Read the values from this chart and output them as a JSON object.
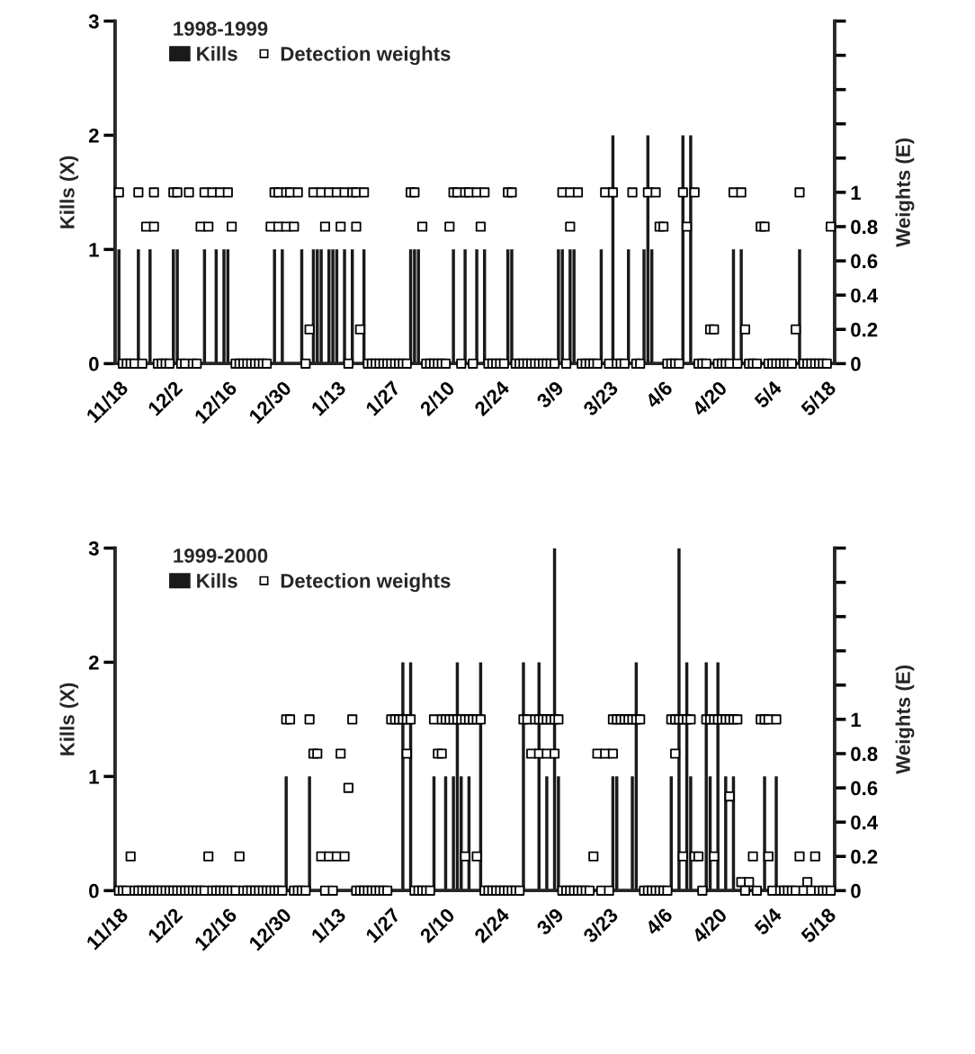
{
  "chart_data": [
    {
      "type": "bar",
      "title": "1998-1999",
      "ylabel": "Kills (X)",
      "y2label": "Weights (E)",
      "legend": "top left",
      "grid": false,
      "xlim": [
        "1999-11-17",
        "2000-05-20"
      ],
      "xticks": [
        {
          "value": "1999-11-18",
          "label": "11/18"
        },
        {
          "value": "1999-12-02",
          "label": "12/2"
        },
        {
          "value": "1999-12-16",
          "label": "12/16"
        },
        {
          "value": "1999-12-30",
          "label": "12/30"
        },
        {
          "value": "2000-01-13",
          "label": "1/13"
        },
        {
          "value": "2000-01-27",
          "label": "1/27"
        },
        {
          "value": "2000-02-10",
          "label": "2/10"
        },
        {
          "value": "2000-02-24",
          "label": "2/24"
        },
        {
          "value": "2000-03-09",
          "label": "3/9"
        },
        {
          "value": "2000-03-23",
          "label": "3/23"
        },
        {
          "value": "2000-04-06",
          "label": "4/6"
        },
        {
          "value": "2000-04-20",
          "label": "4/20"
        },
        {
          "value": "2000-05-04",
          "label": "5/4"
        },
        {
          "value": "2000-05-18",
          "label": "5/18"
        }
      ],
      "ylim": [
        0,
        3
      ],
      "yticks": [
        0,
        1,
        2,
        3
      ],
      "y2lim": [
        0,
        2
      ],
      "y2ticks": [
        0,
        0.2,
        0.4,
        0.6,
        0.8,
        1,
        {
          "value": 1.2,
          "label": null
        },
        {
          "value": 1.4,
          "label": null
        },
        {
          "value": 1.6,
          "label": null
        },
        {
          "value": 1.8,
          "label": null
        },
        {
          "value": 2,
          "label": null
        }
      ],
      "series": [
        {
          "name": "Kills",
          "color": "#1a1a1a",
          "x": [
            "1999-11-18",
            "1999-11-23",
            "1999-11-26",
            "1999-12-02",
            "1999-12-03",
            "1999-12-10",
            "1999-12-13",
            "1999-12-15",
            "1999-12-16",
            "1999-12-28",
            "1999-12-30",
            "2000-01-04",
            "2000-01-07",
            "2000-01-08",
            "2000-01-09",
            "2000-01-11",
            "2000-01-12",
            "2000-01-13",
            "2000-01-15",
            "2000-01-17",
            "2000-01-20",
            "2000-02-01",
            "2000-02-02",
            "2000-02-03",
            "2000-02-12",
            "2000-02-15",
            "2000-02-18",
            "2000-02-20",
            "2000-02-26",
            "2000-02-27",
            "2000-03-10",
            "2000-03-11",
            "2000-03-13",
            "2000-03-14",
            "2000-03-21",
            "2000-03-24",
            "2000-03-28",
            "2000-04-01",
            "2000-04-02",
            "2000-04-03",
            "2000-04-11",
            "2000-04-13",
            "2000-04-24",
            "2000-04-26",
            "2000-05-11"
          ],
          "values": [
            1,
            1,
            1,
            1,
            1,
            1,
            1,
            1,
            1,
            1,
            1,
            1,
            1,
            1,
            1,
            1,
            1,
            1,
            1,
            1,
            1,
            1,
            1,
            1,
            1,
            1,
            1,
            1,
            1,
            1,
            1,
            1,
            1,
            1,
            1,
            2,
            1,
            1,
            2,
            1,
            2,
            2,
            1,
            1,
            1
          ]
        },
        {
          "name": "Detection weights",
          "type": "scatter",
          "axis": "y2",
          "marker": "square",
          "color": "#ffffff",
          "x": [
            "1999-11-18",
            "1999-11-23",
            "1999-11-27",
            "1999-12-02",
            "1999-12-03",
            "1999-12-06",
            "1999-12-10",
            "1999-12-12",
            "1999-12-14",
            "1999-12-16",
            "1999-12-28",
            "1999-12-29",
            "1999-12-31",
            "2000-01-01",
            "2000-01-03",
            "2000-01-07",
            "2000-01-09",
            "2000-01-11",
            "2000-01-13",
            "2000-01-15",
            "2000-01-17",
            "2000-01-18",
            "2000-01-20",
            "2000-02-01",
            "2000-02-02",
            "2000-02-12",
            "2000-02-13",
            "2000-02-15",
            "2000-02-16",
            "2000-02-18",
            "2000-02-20",
            "2000-02-26",
            "2000-02-27",
            "2000-03-11",
            "2000-03-13",
            "2000-03-15",
            "2000-03-22",
            "2000-03-24",
            "2000-03-29",
            "2000-04-02",
            "2000-04-04",
            "2000-04-11",
            "2000-04-14",
            "2000-04-24",
            "2000-04-26",
            "2000-05-11",
            "1999-11-25",
            "1999-11-27",
            "1999-12-09",
            "1999-12-11",
            "1999-12-17",
            "1999-12-27",
            "1999-12-29",
            "1999-12-31",
            "2000-01-02",
            "2000-01-10",
            "2000-01-14",
            "2000-01-18",
            "2000-02-04",
            "2000-02-11",
            "2000-02-19",
            "2000-03-13",
            "2000-04-05",
            "2000-04-06",
            "2000-04-12",
            "2000-05-01",
            "2000-05-02",
            "2000-05-19",
            "2000-01-06",
            "2000-01-19",
            "2000-04-18",
            "2000-04-19",
            "2000-04-27",
            "2000-05-10",
            "1999-11-19",
            "1999-11-20",
            "1999-11-21",
            "1999-11-22",
            "1999-11-24",
            "1999-11-28",
            "1999-11-29",
            "1999-11-30",
            "1999-12-01",
            "1999-12-04",
            "1999-12-05",
            "1999-12-07",
            "1999-12-08",
            "1999-12-18",
            "1999-12-19",
            "1999-12-20",
            "1999-12-21",
            "1999-12-22",
            "1999-12-23",
            "1999-12-24",
            "1999-12-25",
            "1999-12-26",
            "2000-01-05",
            "2000-01-16",
            "2000-01-21",
            "2000-01-22",
            "2000-01-23",
            "2000-01-24",
            "2000-01-25",
            "2000-01-26",
            "2000-01-27",
            "2000-01-28",
            "2000-01-29",
            "2000-01-30",
            "2000-01-31",
            "2000-02-05",
            "2000-02-06",
            "2000-02-07",
            "2000-02-08",
            "2000-02-09",
            "2000-02-10",
            "2000-02-14",
            "2000-02-17",
            "2000-02-21",
            "2000-02-22",
            "2000-02-23",
            "2000-02-24",
            "2000-02-25",
            "2000-02-28",
            "2000-02-29",
            "2000-03-01",
            "2000-03-02",
            "2000-03-03",
            "2000-03-04",
            "2000-03-05",
            "2000-03-06",
            "2000-03-07",
            "2000-03-08",
            "2000-03-09",
            "2000-03-12",
            "2000-03-16",
            "2000-03-17",
            "2000-03-18",
            "2000-03-19",
            "2000-03-20",
            "2000-03-23",
            "2000-03-25",
            "2000-03-26",
            "2000-03-27",
            "2000-03-30",
            "2000-03-31",
            "2000-04-07",
            "2000-04-08",
            "2000-04-09",
            "2000-04-10",
            "2000-04-15",
            "2000-04-16",
            "2000-04-17",
            "2000-04-20",
            "2000-04-21",
            "2000-04-22",
            "2000-04-23",
            "2000-04-25",
            "2000-04-28",
            "2000-04-29",
            "2000-04-30",
            "2000-05-03",
            "2000-05-04",
            "2000-05-05",
            "2000-05-06",
            "2000-05-07",
            "2000-05-08",
            "2000-05-09",
            "2000-05-12",
            "2000-05-13",
            "2000-05-14",
            "2000-05-15",
            "2000-05-16",
            "2000-05-17",
            "2000-05-18"
          ],
          "values": [
            1,
            1,
            1,
            1,
            1,
            1,
            1,
            1,
            1,
            1,
            1,
            1,
            1,
            1,
            1,
            1,
            1,
            1,
            1,
            1,
            1,
            1,
            1,
            1,
            1,
            1,
            1,
            1,
            1,
            1,
            1,
            1,
            1,
            1,
            1,
            1,
            1,
            1,
            1,
            1,
            1,
            1,
            1,
            1,
            1,
            1,
            0.8,
            0.8,
            0.8,
            0.8,
            0.8,
            0.8,
            0.8,
            0.8,
            0.8,
            0.8,
            0.8,
            0.8,
            0.8,
            0.8,
            0.8,
            0.8,
            0.8,
            0.8,
            0.8,
            0.8,
            0.8,
            0.8,
            0.2,
            0.2,
            0.2,
            0.2,
            0.2,
            0.2,
            0,
            0,
            0,
            0,
            0,
            0,
            0,
            0,
            0,
            0,
            0,
            0,
            0,
            0,
            0,
            0,
            0,
            0,
            0,
            0,
            0,
            0,
            0,
            0,
            0,
            0,
            0,
            0,
            0,
            0,
            0,
            0,
            0,
            0,
            0,
            0,
            0,
            0,
            0,
            0,
            0,
            0,
            0,
            0,
            0,
            0,
            0,
            0,
            0,
            0,
            0,
            0,
            0,
            0,
            0,
            0,
            0,
            0,
            0,
            0,
            0,
            0,
            0,
            0,
            0,
            0,
            0,
            0,
            0,
            0,
            0,
            0,
            0,
            0,
            0,
            0,
            0,
            0,
            0,
            0,
            0,
            0,
            0,
            0,
            0,
            0,
            0,
            0,
            0,
            0,
            0,
            0,
            0,
            0,
            0,
            0,
            0,
            0,
            0,
            0
          ]
        }
      ]
    },
    {
      "type": "bar",
      "title": "1999-2000",
      "ylabel": "Kills (X)",
      "y2label": "Weights (E)",
      "legend": "top left",
      "grid": false,
      "xlim": [
        "1999-11-17",
        "2000-05-20"
      ],
      "xticks": [
        {
          "value": "1999-11-18",
          "label": "11/18"
        },
        {
          "value": "1999-12-02",
          "label": "12/2"
        },
        {
          "value": "1999-12-16",
          "label": "12/16"
        },
        {
          "value": "1999-12-30",
          "label": "12/30"
        },
        {
          "value": "2000-01-13",
          "label": "1/13"
        },
        {
          "value": "2000-01-27",
          "label": "1/27"
        },
        {
          "value": "2000-02-10",
          "label": "2/10"
        },
        {
          "value": "2000-02-24",
          "label": "2/24"
        },
        {
          "value": "2000-03-09",
          "label": "3/9"
        },
        {
          "value": "2000-03-23",
          "label": "3/23"
        },
        {
          "value": "2000-04-06",
          "label": "4/6"
        },
        {
          "value": "2000-04-20",
          "label": "4/20"
        },
        {
          "value": "2000-05-04",
          "label": "5/4"
        },
        {
          "value": "2000-05-18",
          "label": "5/18"
        }
      ],
      "ylim": [
        0,
        3
      ],
      "yticks": [
        0,
        1,
        2,
        3
      ],
      "y2lim": [
        0,
        2
      ],
      "y2ticks": [
        0,
        0.2,
        0.4,
        0.6,
        0.8,
        1,
        {
          "value": 1.2,
          "label": null
        },
        {
          "value": 1.4,
          "label": null
        },
        {
          "value": 1.6,
          "label": null
        },
        {
          "value": 1.8,
          "label": null
        },
        {
          "value": 2,
          "label": null
        }
      ],
      "series": [
        {
          "name": "Kills",
          "color": "#1a1a1a",
          "x": [
            "1999-12-31",
            "2000-01-06",
            "2000-01-30",
            "2000-02-01",
            "2000-02-07",
            "2000-02-10",
            "2000-02-12",
            "2000-02-13",
            "2000-02-14",
            "2000-02-16",
            "2000-02-19",
            "2000-03-01",
            "2000-03-05",
            "2000-03-07",
            "2000-03-09",
            "2000-03-10",
            "2000-03-24",
            "2000-03-25",
            "2000-03-29",
            "2000-03-30",
            "2000-04-08",
            "2000-04-10",
            "2000-04-12",
            "2000-04-13",
            "2000-04-17",
            "2000-04-18",
            "2000-04-20",
            "2000-04-22",
            "2000-04-24",
            "2000-05-02",
            "2000-05-05"
          ],
          "values": [
            1,
            1,
            2,
            2,
            1,
            1,
            1,
            2,
            1,
            1,
            2,
            2,
            2,
            1,
            3,
            1,
            1,
            1,
            1,
            2,
            1,
            3,
            2,
            1,
            2,
            1,
            2,
            1,
            1,
            1,
            1
          ]
        },
        {
          "name": "Detection weights",
          "type": "scatter",
          "axis": "y2",
          "marker": "square",
          "color": "#ffffff",
          "x": [
            "1999-12-31",
            "2000-01-01",
            "2000-01-06",
            "2000-01-17",
            "2000-01-27",
            "2000-01-28",
            "2000-01-29",
            "2000-01-30",
            "2000-01-31",
            "2000-02-01",
            "2000-02-07",
            "2000-02-09",
            "2000-02-10",
            "2000-02-11",
            "2000-02-12",
            "2000-02-13",
            "2000-02-14",
            "2000-02-15",
            "2000-02-16",
            "2000-02-17",
            "2000-02-18",
            "2000-02-19",
            "2000-03-01",
            "2000-03-02",
            "2000-03-04",
            "2000-03-05",
            "2000-03-06",
            "2000-03-07",
            "2000-03-08",
            "2000-03-09",
            "2000-03-10",
            "2000-03-24",
            "2000-03-25",
            "2000-03-26",
            "2000-03-27",
            "2000-03-28",
            "2000-03-29",
            "2000-03-30",
            "2000-03-31",
            "2000-04-08",
            "2000-04-09",
            "2000-04-10",
            "2000-04-11",
            "2000-04-12",
            "2000-04-13",
            "2000-04-17",
            "2000-04-18",
            "2000-04-19",
            "2000-04-20",
            "2000-04-21",
            "2000-04-22",
            "2000-04-23",
            "2000-04-24",
            "2000-04-25",
            "2000-05-01",
            "2000-05-02",
            "2000-05-03",
            "2000-05-05",
            "2000-01-07",
            "2000-01-08",
            "2000-01-14",
            "2000-01-31",
            "2000-02-08",
            "2000-02-09",
            "2000-03-03",
            "2000-03-05",
            "2000-03-07",
            "2000-03-09",
            "2000-03-20",
            "2000-03-22",
            "2000-03-24",
            "2000-04-09",
            "2000-01-16",
            "2000-04-23",
            "1999-11-21",
            "1999-12-11",
            "1999-12-19",
            "2000-01-09",
            "2000-01-11",
            "2000-01-13",
            "2000-01-15",
            "2000-02-15",
            "2000-02-18",
            "2000-03-19",
            "2000-04-11",
            "2000-04-14",
            "2000-04-15",
            "2000-04-19",
            "2000-04-29",
            "2000-05-03",
            "2000-05-11",
            "2000-05-15",
            "2000-04-26",
            "2000-04-28",
            "2000-05-13",
            "1999-11-18",
            "1999-11-19",
            "1999-11-20",
            "1999-11-22",
            "1999-11-23",
            "1999-11-24",
            "1999-11-25",
            "1999-11-26",
            "1999-11-27",
            "1999-11-28",
            "1999-11-29",
            "1999-11-30",
            "1999-12-01",
            "1999-12-02",
            "1999-12-03",
            "1999-12-04",
            "1999-12-05",
            "1999-12-06",
            "1999-12-07",
            "1999-12-08",
            "1999-12-09",
            "1999-12-10",
            "1999-12-12",
            "1999-12-13",
            "1999-12-14",
            "1999-12-15",
            "1999-12-16",
            "1999-12-17",
            "1999-12-18",
            "1999-12-20",
            "1999-12-21",
            "1999-12-22",
            "1999-12-23",
            "1999-12-24",
            "1999-12-25",
            "1999-12-26",
            "1999-12-27",
            "1999-12-28",
            "1999-12-29",
            "1999-12-30",
            "2000-01-02",
            "2000-01-03",
            "2000-01-04",
            "2000-01-05",
            "2000-01-10",
            "2000-01-12",
            "2000-01-18",
            "2000-01-19",
            "2000-01-20",
            "2000-01-21",
            "2000-01-22",
            "2000-01-23",
            "2000-01-24",
            "2000-01-25",
            "2000-01-26",
            "2000-02-02",
            "2000-02-03",
            "2000-02-04",
            "2000-02-05",
            "2000-02-06",
            "2000-02-20",
            "2000-02-21",
            "2000-02-22",
            "2000-02-23",
            "2000-02-24",
            "2000-02-25",
            "2000-02-26",
            "2000-02-27",
            "2000-02-28",
            "2000-02-29",
            "2000-03-11",
            "2000-03-12",
            "2000-03-13",
            "2000-03-14",
            "2000-03-15",
            "2000-03-16",
            "2000-03-17",
            "2000-03-18",
            "2000-03-21",
            "2000-03-23",
            "2000-04-01",
            "2000-04-02",
            "2000-04-03",
            "2000-04-04",
            "2000-04-05",
            "2000-04-06",
            "2000-04-07",
            "2000-04-16",
            "2000-04-27",
            "2000-04-30",
            "2000-05-04",
            "2000-05-06",
            "2000-05-07",
            "2000-05-08",
            "2000-05-09",
            "2000-05-10",
            "2000-05-12",
            "2000-05-14",
            "2000-05-16",
            "2000-05-17",
            "2000-05-18",
            "2000-05-19"
          ],
          "values": [
            1,
            1,
            1,
            1,
            1,
            1,
            1,
            1,
            1,
            1,
            1,
            1,
            1,
            1,
            1,
            1,
            1,
            1,
            1,
            1,
            1,
            1,
            1,
            1,
            1,
            1,
            1,
            1,
            1,
            1,
            1,
            1,
            1,
            1,
            1,
            1,
            1,
            1,
            1,
            1,
            1,
            1,
            1,
            1,
            1,
            1,
            1,
            1,
            1,
            1,
            1,
            1,
            1,
            1,
            1,
            1,
            1,
            1,
            0.8,
            0.8,
            0.8,
            0.8,
            0.8,
            0.8,
            0.8,
            0.8,
            0.8,
            0.8,
            0.8,
            0.8,
            0.8,
            0.8,
            0.6,
            0.55,
            0.2,
            0.2,
            0.2,
            0.2,
            0.2,
            0.2,
            0.2,
            0.2,
            0.2,
            0.2,
            0.2,
            0.2,
            0.2,
            0.2,
            0.2,
            0.2,
            0.2,
            0.2,
            0.05,
            0.05,
            0.05,
            0,
            0,
            0,
            0,
            0,
            0,
            0,
            0,
            0,
            0,
            0,
            0,
            0,
            0,
            0,
            0,
            0,
            0,
            0,
            0,
            0,
            0,
            0,
            0,
            0,
            0,
            0,
            0,
            0,
            0,
            0,
            0,
            0,
            0,
            0,
            0,
            0,
            0,
            0,
            0,
            0,
            0,
            0,
            0,
            0,
            0,
            0,
            0,
            0,
            0,
            0,
            0,
            0,
            0,
            0,
            0,
            0,
            0,
            0,
            0,
            0,
            0,
            0,
            0,
            0,
            0,
            0,
            0,
            0,
            0,
            0,
            0,
            0,
            0,
            0,
            0,
            0,
            0,
            0,
            0,
            0,
            0,
            0,
            0,
            0,
            0,
            0,
            0,
            0,
            0,
            0,
            0,
            0,
            0,
            0,
            0,
            0,
            0,
            0,
            0,
            0,
            0
          ]
        }
      ]
    }
  ]
}
